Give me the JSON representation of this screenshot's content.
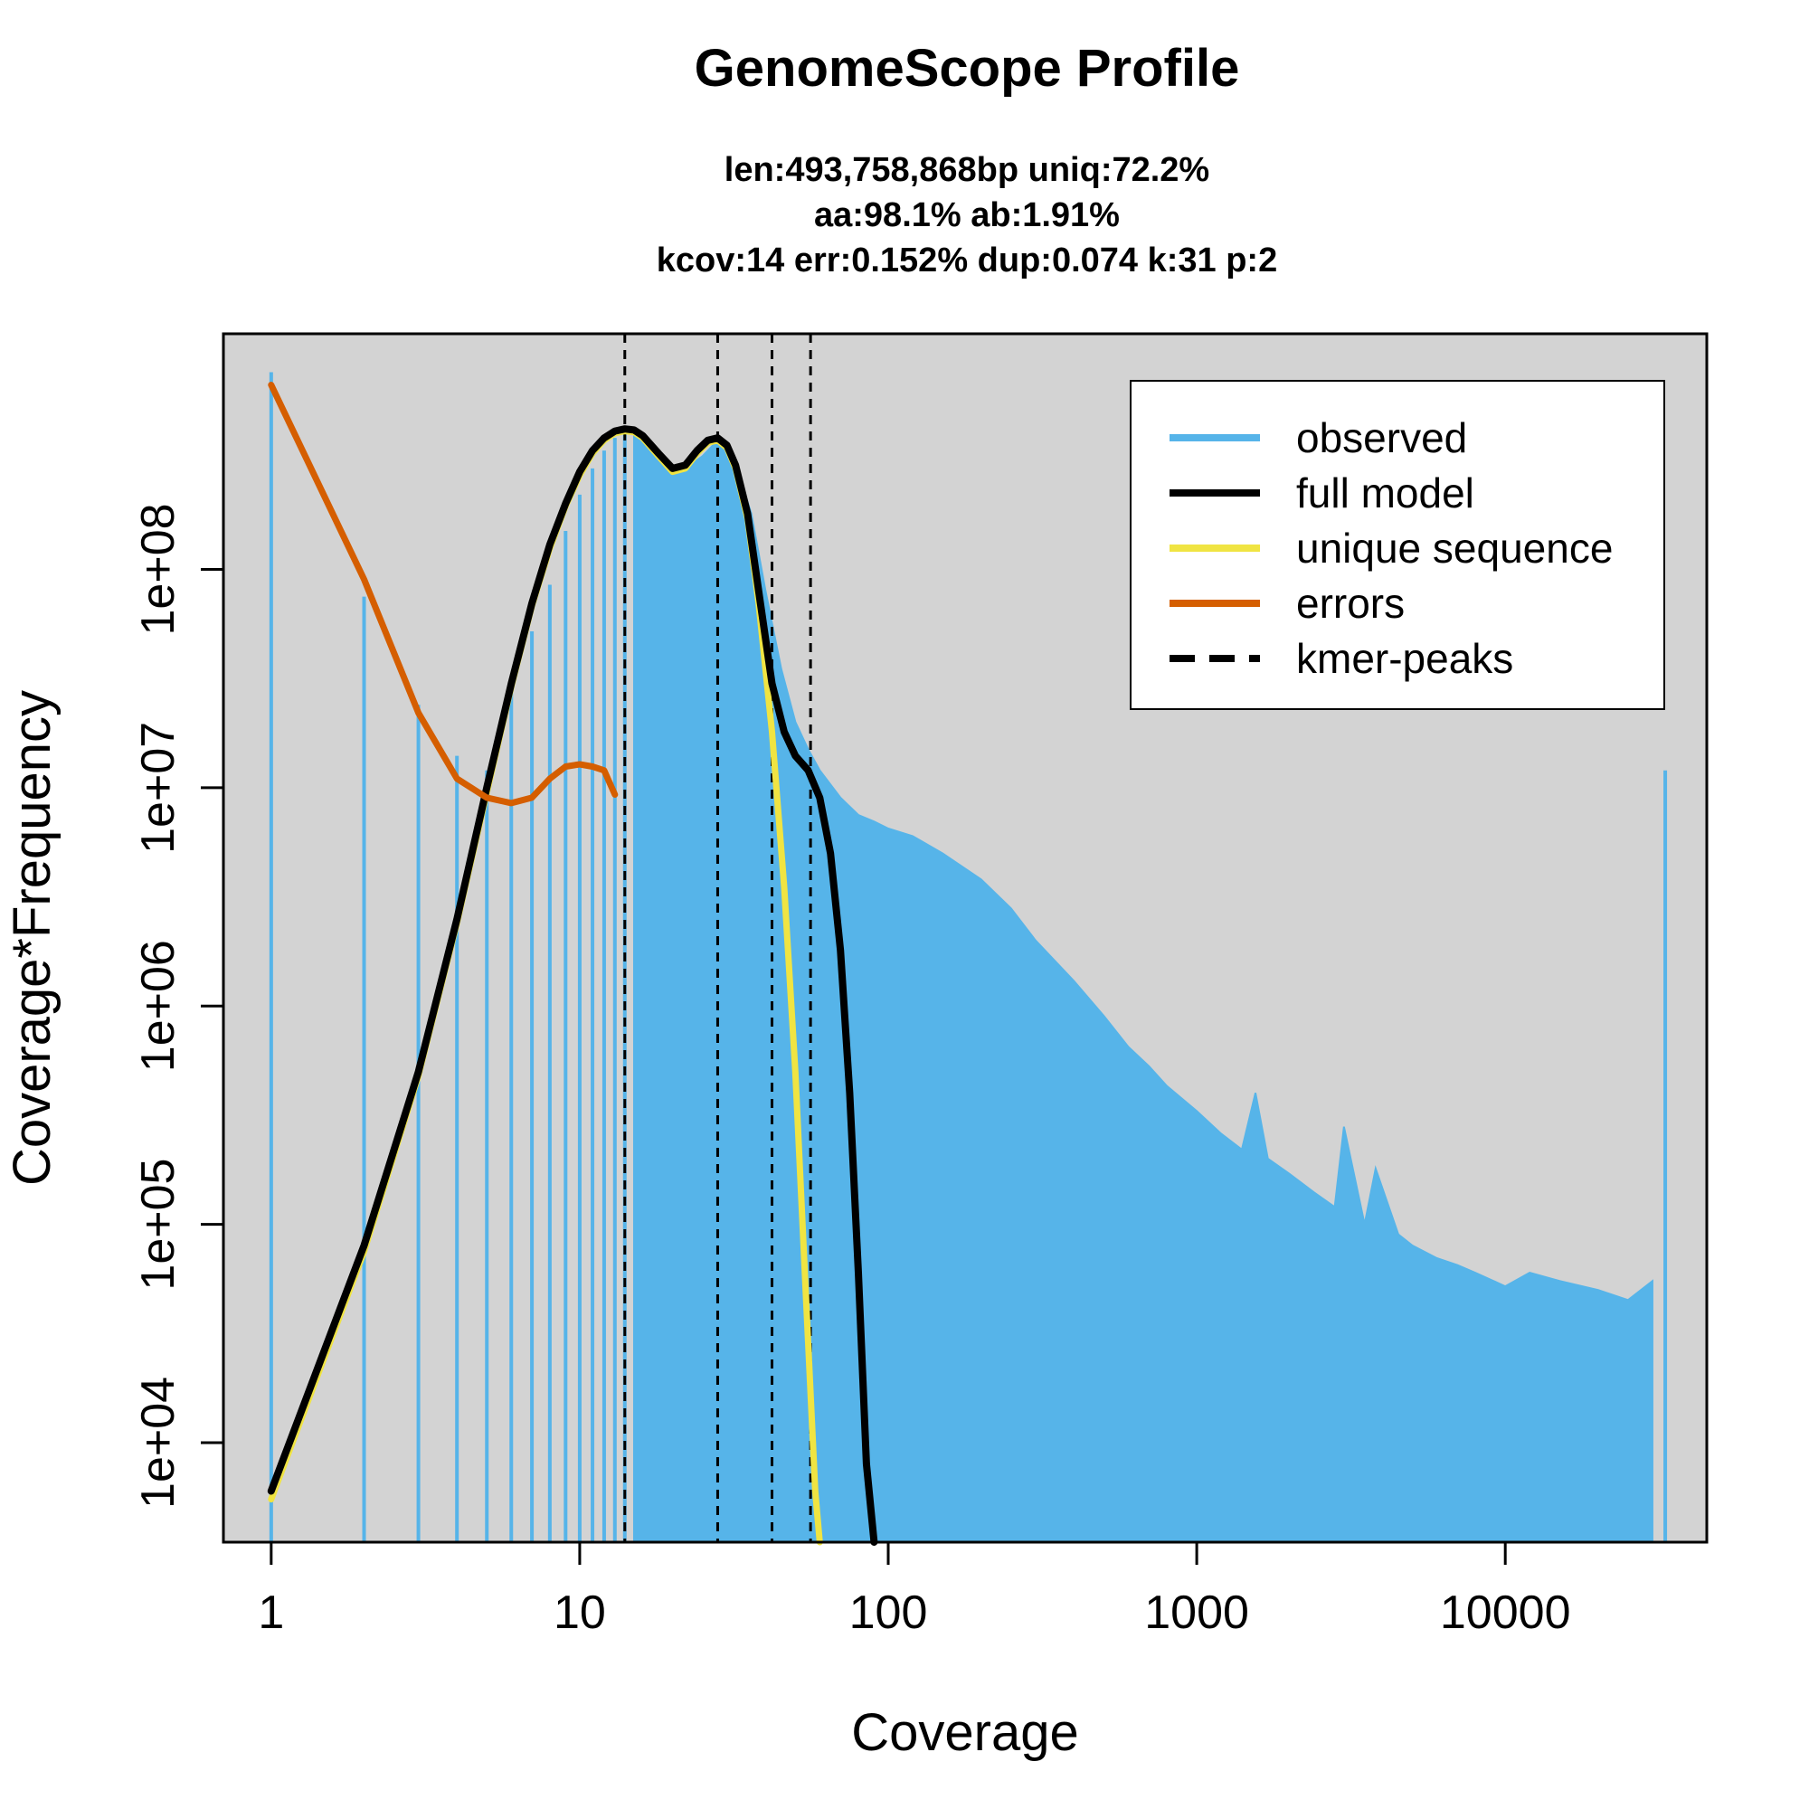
{
  "chart_data": {
    "type": "bar",
    "title": "GenomeScope Profile",
    "subtitle_lines": [
      "len:493,758,868bp uniq:72.2%",
      "aa:98.1% ab:1.91%",
      "kcov:14 err:0.152%  dup:0.074  k:31 p:2"
    ],
    "xlabel": "Coverage",
    "ylabel": "Coverage*Frequency",
    "x_scale": "log",
    "y_scale": "log",
    "xlim": [
      0.7,
      45000
    ],
    "ylim": [
      3500,
      1200000000
    ],
    "x_ticks": [
      1,
      10,
      100,
      1000,
      10000
    ],
    "x_tick_labels": [
      "1",
      "10",
      "100",
      "1000",
      "10000"
    ],
    "y_ticks": [
      10000,
      100000,
      1000000,
      10000000,
      100000000
    ],
    "y_tick_labels": [
      "1e+04",
      "1e+05",
      "1e+06",
      "1e+07",
      "1e+08"
    ],
    "background_color": "#d3d3d3",
    "grid": false,
    "legend_position": "top-right",
    "legend": [
      {
        "label": "observed",
        "color": "#56b4e9",
        "style": "solid"
      },
      {
        "label": "full model",
        "color": "#000000",
        "style": "solid"
      },
      {
        "label": "unique sequence",
        "color": "#f0e442",
        "style": "solid"
      },
      {
        "label": "errors",
        "color": "#d55e00",
        "style": "solid"
      },
      {
        "label": "kmer-peaks",
        "color": "#000000",
        "style": "dashed"
      }
    ],
    "kmer_peaks": [
      14,
      28,
      42,
      56
    ],
    "observed": {
      "name": "observed",
      "color": "#56b4e9",
      "x": [
        1,
        2,
        3,
        4,
        5,
        6,
        7,
        8,
        9,
        10,
        11,
        12,
        13,
        14,
        15,
        16,
        17,
        18,
        19,
        20,
        22,
        25,
        28,
        32,
        36,
        40,
        45,
        50,
        55,
        60,
        70,
        80,
        90,
        100,
        120,
        150,
        200,
        250,
        300,
        400,
        500,
        600,
        700,
        800,
        1000,
        1200,
        1400,
        1550,
        1700,
        2000,
        2400,
        2800,
        3000,
        3500,
        3800,
        4500,
        5000,
        6000,
        7000,
        8000,
        10000,
        12000,
        15000,
        20000,
        25000,
        30000,
        33000
      ],
      "y": [
        800000000,
        75000000,
        24000000,
        14000000,
        12000000,
        28000000,
        52000000,
        85000000,
        150000000,
        220000000,
        290000000,
        350000000,
        400000000,
        420000000,
        430000000,
        410000000,
        380000000,
        350000000,
        320000000,
        300000000,
        290000000,
        330000000,
        390000000,
        300000000,
        180000000,
        80000000,
        35000000,
        20000000,
        15000000,
        12000000,
        9000000,
        7500000,
        7000000,
        6500000,
        6000000,
        5000000,
        3800000,
        2800000,
        2000000,
        1300000,
        900000,
        650000,
        530000,
        430000,
        330000,
        260000,
        220000,
        400000,
        200000,
        170000,
        140000,
        120000,
        280000,
        100000,
        180000,
        90000,
        80000,
        70000,
        65000,
        60000,
        52000,
        60000,
        55000,
        50000,
        45000,
        55000,
        12000000
      ]
    },
    "full_model": {
      "name": "full model",
      "color": "#000000",
      "x": [
        1,
        2,
        3,
        4,
        5,
        6,
        7,
        8,
        9,
        10,
        11,
        12,
        13,
        14,
        15,
        16,
        18,
        20,
        22,
        24,
        26,
        28,
        30,
        32,
        35,
        38,
        42,
        46,
        50,
        55,
        60,
        65,
        70,
        75,
        80,
        85,
        90
      ],
      "y": [
        6000,
        80000,
        500000,
        2500000,
        10000000,
        30000000,
        70000000,
        130000000,
        200000000,
        280000000,
        350000000,
        400000000,
        430000000,
        440000000,
        435000000,
        410000000,
        340000000,
        290000000,
        300000000,
        350000000,
        390000000,
        400000000,
        370000000,
        300000000,
        180000000,
        80000000,
        30000000,
        18000000,
        14000000,
        12000000,
        9000000,
        5000000,
        1800000,
        400000,
        60000,
        8000,
        2000
      ]
    },
    "unique_sequence": {
      "name": "unique sequence",
      "color": "#f0e442",
      "x": [
        1,
        2,
        3,
        4,
        5,
        6,
        7,
        8,
        9,
        10,
        11,
        12,
        13,
        14,
        15,
        16,
        18,
        20,
        22,
        24,
        26,
        28,
        30,
        32,
        35,
        38,
        42,
        46,
        50,
        54,
        58,
        60
      ],
      "y": [
        5500,
        75000,
        480000,
        2400000,
        9500000,
        29000000,
        68000000,
        125000000,
        195000000,
        270000000,
        340000000,
        390000000,
        420000000,
        430000000,
        425000000,
        400000000,
        330000000,
        280000000,
        290000000,
        340000000,
        380000000,
        390000000,
        360000000,
        290000000,
        170000000,
        70000000,
        18000000,
        3500000,
        500000,
        50000,
        6000,
        2000
      ]
    },
    "errors": {
      "name": "errors",
      "color": "#d55e00",
      "x": [
        1,
        2,
        3,
        4,
        5,
        6,
        7,
        8,
        9,
        10,
        11,
        12,
        13
      ],
      "y": [
        700000000,
        90000000,
        22000000,
        11000000,
        9000000,
        8500000,
        9000000,
        11000000,
        12500000,
        12800000,
        12500000,
        12000000,
        9300000
      ]
    }
  }
}
